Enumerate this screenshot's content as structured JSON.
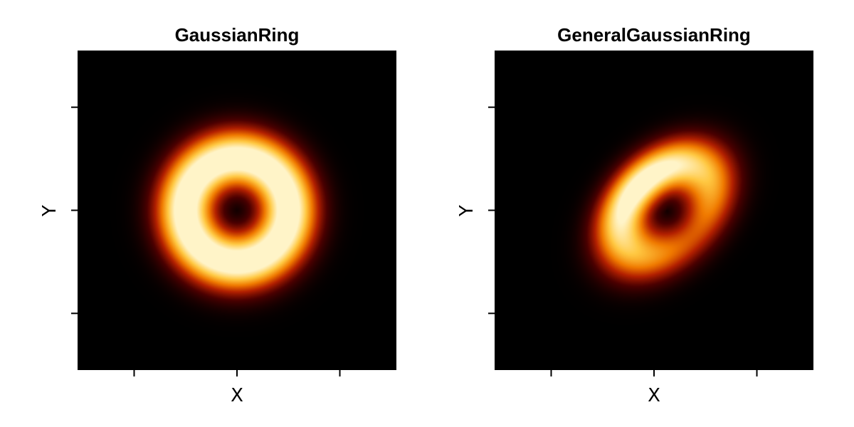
{
  "colors": {
    "background": "#000000",
    "colormap": [
      "#000000",
      "#4a0000",
      "#b32000",
      "#f07a00",
      "#ffc842",
      "#fff4c8"
    ]
  },
  "chart_data": [
    {
      "type": "heatmap",
      "name": "gaussian-ring",
      "title": "GaussianRing",
      "xlabel": "X",
      "ylabel": "Y",
      "xlim": [
        -1.55,
        1.55
      ],
      "ylim": [
        -1.55,
        1.55
      ],
      "x_ticks": [
        -1.0,
        0.0,
        1.0
      ],
      "y_ticks": [
        -1.0,
        0.0,
        1.0
      ],
      "tick_labels_shown": false,
      "colormap": "afmhot",
      "model": {
        "radius": 0.5,
        "width": 0.18,
        "center": [
          0.0,
          0.0
        ]
      }
    },
    {
      "type": "heatmap",
      "name": "general-gaussian-ring",
      "title": "GeneralGaussianRing",
      "xlabel": "X",
      "ylabel": "Y",
      "xlim": [
        -1.55,
        1.55
      ],
      "ylim": [
        -1.55,
        1.55
      ],
      "x_ticks": [
        -1.0,
        0.0,
        1.0
      ],
      "y_ticks": [
        -1.0,
        0.0,
        1.0
      ],
      "tick_labels_shown": false,
      "colormap": "afmhot",
      "model": {
        "radius": 0.5,
        "width": 0.2,
        "center": [
          0.12,
          0.0
        ],
        "ellipticity": 0.3,
        "position_angle_deg": 45,
        "brightness_asymmetry": 0.45
      }
    }
  ]
}
